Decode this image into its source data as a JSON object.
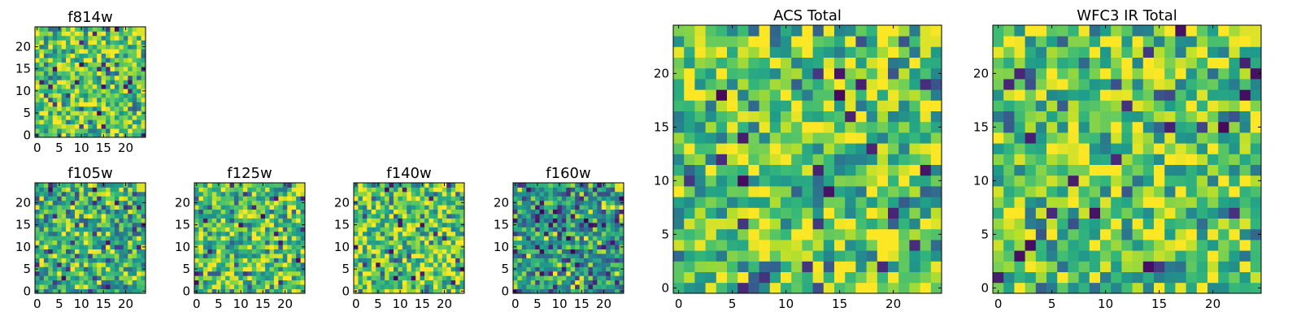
{
  "chart_data": [
    {
      "type": "heatmap",
      "title": "f814w",
      "grid_size": 25,
      "seed": 11,
      "bias": 0.1,
      "xticks": [
        0,
        5,
        10,
        15,
        20
      ],
      "yticks": [
        0,
        5,
        10,
        15,
        20
      ],
      "xlim": [
        -0.5,
        24.5
      ],
      "ylim": [
        -0.5,
        24.5
      ],
      "colormap": "viridis",
      "xlabel": "",
      "ylabel": ""
    },
    {
      "type": "heatmap",
      "title": "f105w",
      "grid_size": 25,
      "seed": 23,
      "bias": 0.0,
      "xticks": [
        0,
        5,
        10,
        15,
        20
      ],
      "yticks": [
        0,
        5,
        10,
        15,
        20
      ],
      "xlim": [
        -0.5,
        24.5
      ],
      "ylim": [
        -0.5,
        24.5
      ],
      "colormap": "viridis",
      "xlabel": "",
      "ylabel": ""
    },
    {
      "type": "heatmap",
      "title": "f125w",
      "grid_size": 25,
      "seed": 37,
      "bias": 0.08,
      "xticks": [
        0,
        5,
        10,
        15,
        20
      ],
      "yticks": [
        0,
        5,
        10,
        15,
        20
      ],
      "xlim": [
        -0.5,
        24.5
      ],
      "ylim": [
        -0.5,
        24.5
      ],
      "colormap": "viridis",
      "xlabel": "",
      "ylabel": ""
    },
    {
      "type": "heatmap",
      "title": "f140w",
      "grid_size": 25,
      "seed": 41,
      "bias": 0.1,
      "xticks": [
        0,
        5,
        10,
        15,
        20
      ],
      "yticks": [
        0,
        5,
        10,
        15,
        20
      ],
      "xlim": [
        -0.5,
        24.5
      ],
      "ylim": [
        -0.5,
        24.5
      ],
      "colormap": "viridis",
      "xlabel": "",
      "ylabel": ""
    },
    {
      "type": "heatmap",
      "title": "f160w",
      "grid_size": 25,
      "seed": 53,
      "bias": -0.08,
      "xticks": [
        0,
        5,
        10,
        15,
        20
      ],
      "yticks": [
        0,
        5,
        10,
        15,
        20
      ],
      "xlim": [
        -0.5,
        24.5
      ],
      "ylim": [
        -0.5,
        24.5
      ],
      "colormap": "viridis",
      "xlabel": "",
      "ylabel": ""
    },
    {
      "type": "heatmap",
      "title": "ACS Total",
      "grid_size": 25,
      "seed": 67,
      "bias": 0.12,
      "xticks": [
        0,
        5,
        10,
        15,
        20
      ],
      "yticks": [
        0,
        5,
        10,
        15,
        20
      ],
      "xlim": [
        -0.5,
        24.5
      ],
      "ylim": [
        -0.5,
        24.5
      ],
      "colormap": "viridis",
      "xlabel": "",
      "ylabel": ""
    },
    {
      "type": "heatmap",
      "title": "WFC3 IR Total",
      "grid_size": 25,
      "seed": 79,
      "bias": 0.12,
      "xticks": [
        0,
        5,
        10,
        15,
        20
      ],
      "yticks": [
        0,
        5,
        10,
        15,
        20
      ],
      "xlim": [
        -0.5,
        24.5
      ],
      "ylim": [
        -0.5,
        24.5
      ],
      "colormap": "viridis",
      "xlabel": "",
      "ylabel": ""
    }
  ]
}
